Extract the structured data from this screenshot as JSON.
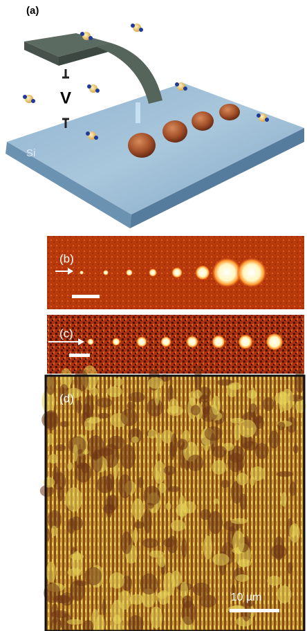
{
  "panel_a": {
    "label": "(a)",
    "voltage_label": "V",
    "substrate_label": "Si"
  },
  "panel_b": {
    "label": "(b)"
  },
  "panel_c": {
    "label": "(c)"
  },
  "panel_d": {
    "label": "(d)",
    "scale_bar_label": "10 µm"
  }
}
